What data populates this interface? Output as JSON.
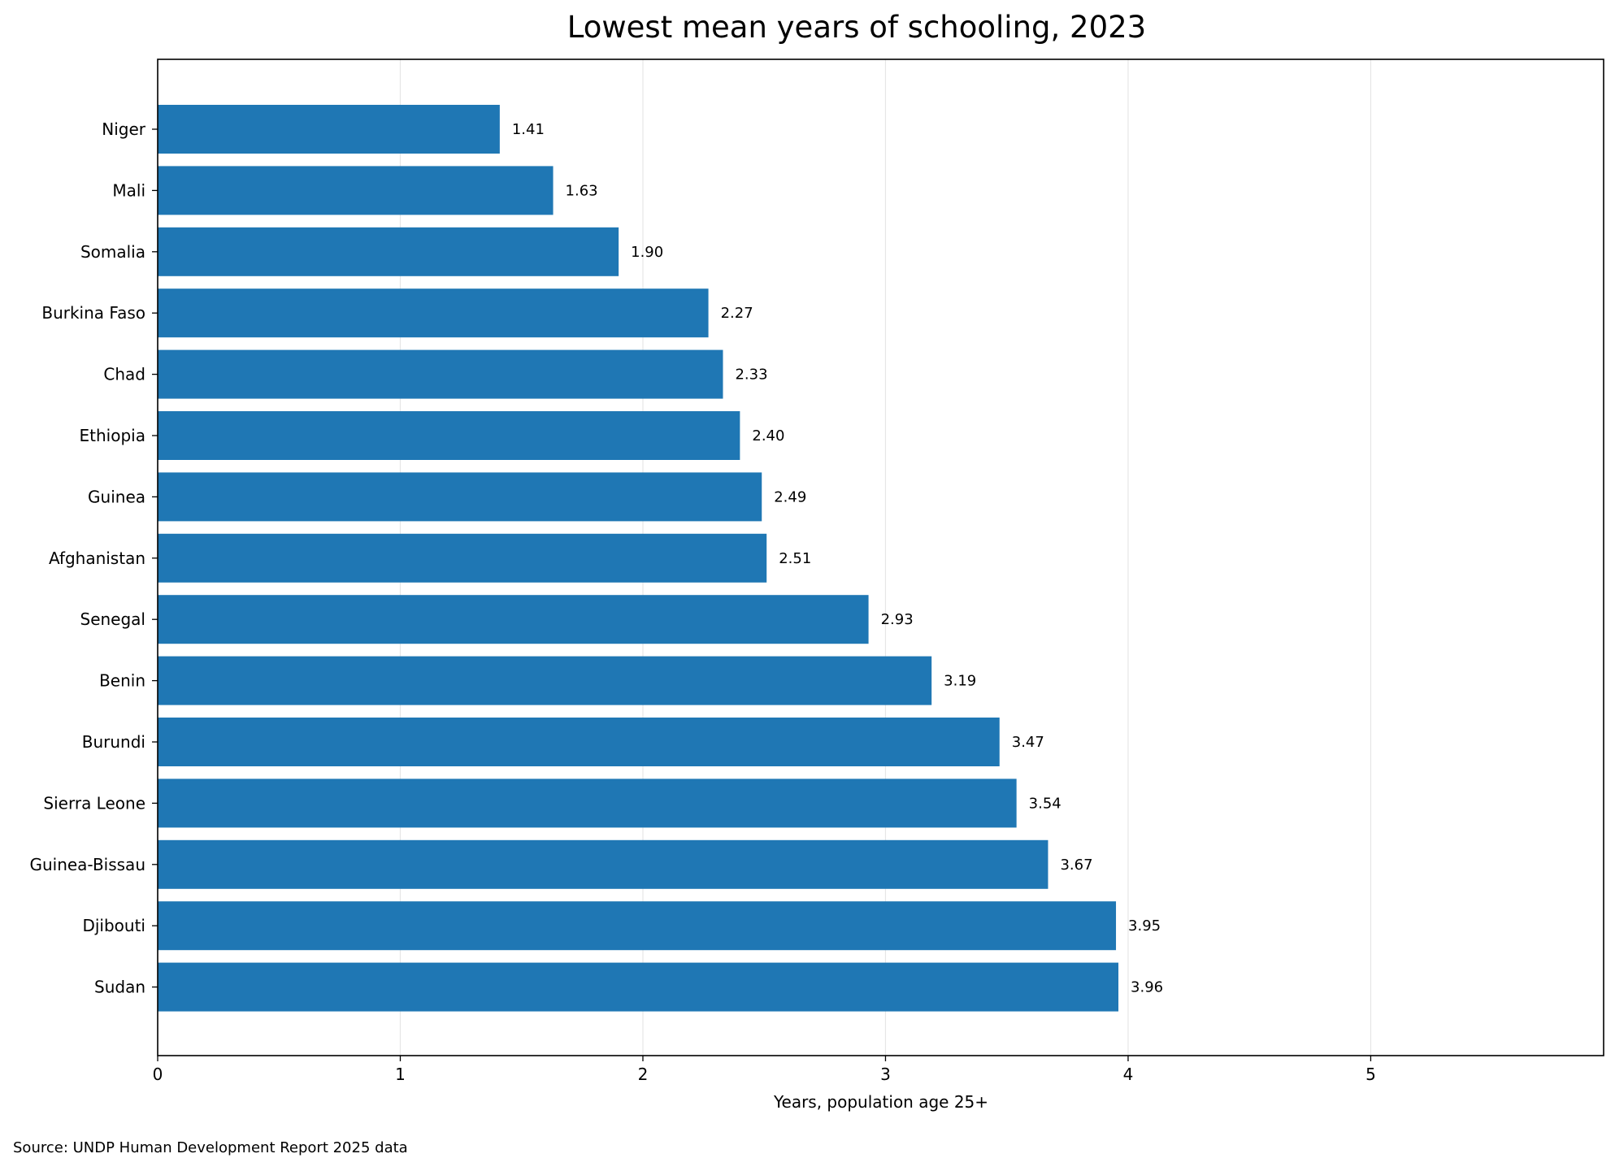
{
  "chart_data": {
    "type": "bar",
    "orientation": "horizontal",
    "title": "Lowest mean years of schooling, 2023",
    "xlabel": "Years, population age 25+",
    "ylabel": "",
    "xlim": [
      0,
      5.96
    ],
    "xticks": [
      0,
      1,
      2,
      3,
      4,
      5
    ],
    "grid": "vertical",
    "bar_color": "#1f77b4",
    "categories": [
      "Niger",
      "Mali",
      "Somalia",
      "Burkina Faso",
      "Chad",
      "Ethiopia",
      "Guinea",
      "Afghanistan",
      "Senegal",
      "Benin",
      "Burundi",
      "Sierra Leone",
      "Guinea-Bissau",
      "Djibouti",
      "Sudan"
    ],
    "values": [
      1.41,
      1.63,
      1.9,
      2.27,
      2.33,
      2.4,
      2.49,
      2.51,
      2.93,
      3.19,
      3.47,
      3.54,
      3.67,
      3.95,
      3.96
    ],
    "value_labels": [
      "1.41",
      "1.63",
      "1.90",
      "2.27",
      "2.33",
      "2.40",
      "2.49",
      "2.51",
      "2.93",
      "3.19",
      "3.47",
      "3.54",
      "3.67",
      "3.95",
      "3.96"
    ],
    "source": "Source: UNDP Human Development Report 2025 data"
  }
}
